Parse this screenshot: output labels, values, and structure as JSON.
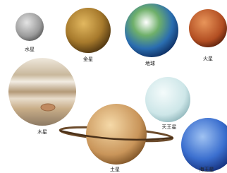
{
  "planets": [
    {
      "label": "水星"
    },
    {
      "label": "金星"
    },
    {
      "label": "地球"
    },
    {
      "label": "火星"
    },
    {
      "label": "木星"
    },
    {
      "label": "天王星"
    },
    {
      "label": "土星"
    },
    {
      "label": "海王星"
    }
  ]
}
